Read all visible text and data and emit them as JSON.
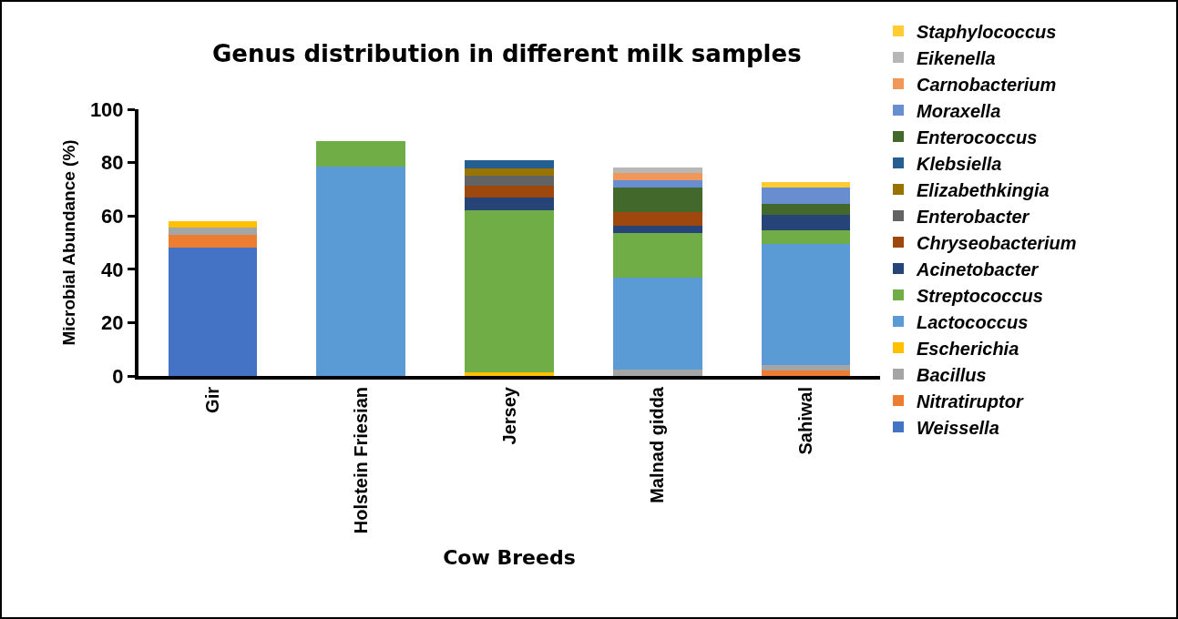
{
  "chart_data": {
    "type": "bar",
    "stacked": true,
    "title": "Genus distribution in different milk samples",
    "xlabel": "Cow Breeds",
    "ylabel": "Microbial Abundance (%)",
    "categories": [
      "Gir",
      "Holstein Friesian",
      "Jersey",
      "Malnad gidda",
      "Sahiwal"
    ],
    "ylim": [
      0,
      100
    ],
    "yticks": [
      0,
      20,
      40,
      60,
      80,
      100
    ],
    "grid": false,
    "legend": "right",
    "series": [
      {
        "name": "Weissella",
        "color": "#4472c4",
        "values": [
          48,
          null,
          null,
          null,
          null
        ]
      },
      {
        "name": "Nitratiruptor",
        "color": "#ed7d31",
        "values": [
          5,
          null,
          null,
          null,
          1.9
        ]
      },
      {
        "name": "Bacillus",
        "color": "#a5a5a5",
        "values": [
          2.5,
          null,
          null,
          2.5,
          2.3
        ]
      },
      {
        "name": "Escherichia",
        "color": "#ffc000",
        "values": [
          2.5,
          null,
          1.5,
          null,
          null
        ]
      },
      {
        "name": "Lactococcus",
        "color": "#5b9bd5",
        "values": [
          null,
          78.5,
          null,
          34.5,
          45.4
        ]
      },
      {
        "name": "Streptococcus",
        "color": "#70ad47",
        "values": [
          null,
          9.7,
          60.7,
          16.7,
          5
        ]
      },
      {
        "name": "Acinetobacter",
        "color": "#264478",
        "values": [
          null,
          null,
          4.8,
          2.5,
          5.8
        ]
      },
      {
        "name": "Chryseobacterium",
        "color": "#9e480e",
        "values": [
          null,
          null,
          4.5,
          5.1,
          null
        ]
      },
      {
        "name": "Enterobacter",
        "color": "#636363",
        "values": [
          null,
          null,
          3.6,
          null,
          null
        ]
      },
      {
        "name": "Elizabethkingia",
        "color": "#997300",
        "values": [
          null,
          null,
          2.7,
          null,
          null
        ]
      },
      {
        "name": "Klebsiella",
        "color": "#255e91",
        "values": [
          null,
          null,
          3,
          null,
          null
        ]
      },
      {
        "name": "Enterococcus",
        "color": "#43682b",
        "values": [
          null,
          null,
          null,
          9.5,
          4.2
        ]
      },
      {
        "name": "Moraxella",
        "color": "#698ed0",
        "values": [
          null,
          null,
          null,
          2.6,
          6.2
        ]
      },
      {
        "name": "Carnobacterium",
        "color": "#f1975a",
        "values": [
          null,
          null,
          null,
          2.8,
          null
        ]
      },
      {
        "name": "Eikenella",
        "color": "#b7b7b7",
        "values": [
          null,
          null,
          null,
          1.9,
          null
        ]
      },
      {
        "name": "Staphylococcus",
        "color": "#ffcd33",
        "values": [
          null,
          null,
          null,
          null,
          1.9
        ]
      }
    ]
  }
}
